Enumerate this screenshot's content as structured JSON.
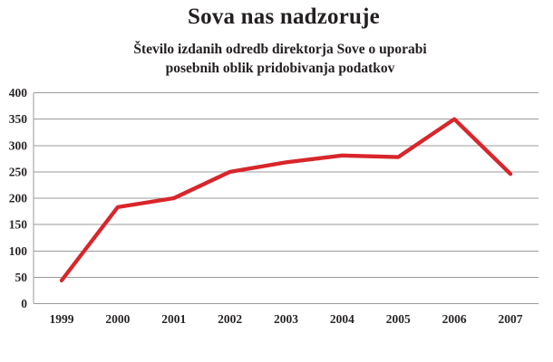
{
  "page": {
    "background_color": "#ffffff"
  },
  "chart_data": {
    "type": "line",
    "title": "Sova nas nadzoruje",
    "subtitle": "Število izdanih odredb direktorja Sove o uporabi posebnih oblik pridobivanja podatkov",
    "subtitle_lines": [
      "Število izdanih odredb direktorja Sove o uporabi",
      "posebnih oblik pridobivanja podatkov"
    ],
    "categories": [
      "1999",
      "2000",
      "2001",
      "2002",
      "2003",
      "2004",
      "2005",
      "2006",
      "2007"
    ],
    "series": [
      {
        "name": "stevilo-odredb",
        "values": [
          44,
          183,
          200,
          250,
          268,
          281,
          278,
          350,
          246
        ],
        "color": "#d8262b"
      }
    ],
    "xlabel": "",
    "ylabel": "",
    "ylim": [
      0,
      400
    ],
    "yticks": [
      0,
      50,
      100,
      150,
      200,
      250,
      300,
      350,
      400
    ],
    "grid": "horizontal",
    "legend": "none",
    "axis_color": "#9b9b9b",
    "tick_label_color": "#2a2627",
    "line_width": 4.3
  }
}
